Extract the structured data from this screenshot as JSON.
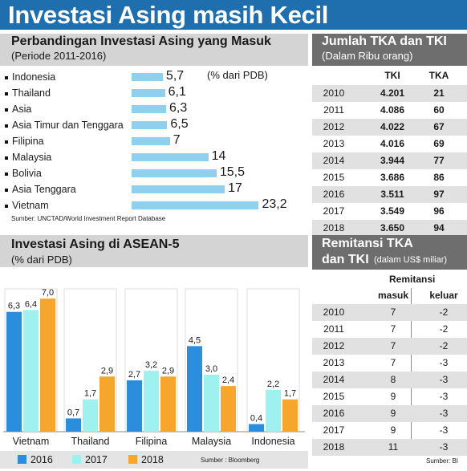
{
  "title": "Investasi Asing masih Kecil",
  "colors": {
    "title_bar": "#1f6fae",
    "bar_hbar": "#8fd0ef",
    "s2016": "#2b8ddb",
    "s2017": "#9ff1ef",
    "s2018": "#f6a62c",
    "dark_header": "#6e6e6e"
  },
  "chart_data": [
    {
      "type": "bar",
      "orientation": "horizontal",
      "title": "Perbandingan Investasi Asing yang Masuk",
      "subtitle": "(Periode 2011-2016)",
      "unit_note": "(% dari PDB)",
      "categories": [
        "Indonesia",
        "Thailand",
        "Asia",
        "Asia Timur dan Tenggara",
        "Filipina",
        "Malaysia",
        "Bolivia",
        "Asia Tenggara",
        "Vietnam"
      ],
      "values": [
        5.7,
        6.1,
        6.3,
        6.5,
        7,
        14,
        15.5,
        17,
        23.2
      ],
      "value_labels": [
        "5,7",
        "6,1",
        "6,3",
        "6,5",
        "7",
        "14",
        "15,5",
        "17",
        "23,2"
      ],
      "source": "Sumber: UNCTAD/World Investment Report Database"
    },
    {
      "type": "bar",
      "title": "Investasi Asing di ASEAN-5",
      "subtitle": "(% dari PDB)",
      "categories": [
        "Vietnam",
        "Thailand",
        "Filipina",
        "Malaysia",
        "Indonesia"
      ],
      "series": [
        {
          "name": "2016",
          "values": [
            6.3,
            0.7,
            2.7,
            4.5,
            0.4
          ],
          "labels": [
            "6,3",
            "0,7",
            "2,7",
            "4,5",
            "0,4"
          ]
        },
        {
          "name": "2017",
          "values": [
            6.4,
            1.7,
            3.2,
            3.0,
            2.2
          ],
          "labels": [
            "6,4",
            "1,7",
            "3,2",
            "3,0",
            "2,2"
          ]
        },
        {
          "name": "2018",
          "values": [
            7.0,
            2.9,
            2.9,
            2.4,
            1.7
          ],
          "labels": [
            "7,0",
            "2,9",
            "2,9",
            "2,4",
            "1,7"
          ]
        }
      ],
      "ylim": [
        0,
        7.6
      ],
      "legend_position": "bottom-left",
      "source": "Sumber : Bloomberg"
    },
    {
      "type": "table",
      "title": "Jumlah TKA dan TKI",
      "subtitle": "(Dalam Ribu orang)",
      "columns": [
        "TKI",
        "TKA"
      ],
      "rows": [
        {
          "year": "2010",
          "tki": "4.201",
          "tka": "21"
        },
        {
          "year": "2011",
          "tki": "4.086",
          "tka": "60"
        },
        {
          "year": "2012",
          "tki": "4.022",
          "tka": "67"
        },
        {
          "year": "2013",
          "tki": "4.016",
          "tka": "69"
        },
        {
          "year": "2014",
          "tki": "3.944",
          "tka": "77"
        },
        {
          "year": "2015",
          "tki": "3.686",
          "tka": "86"
        },
        {
          "year": "2016",
          "tki": "3.511",
          "tka": "97"
        },
        {
          "year": "2017",
          "tki": "3.549",
          "tka": "96"
        },
        {
          "year": "2018",
          "tki": "3.650",
          "tka": "94"
        }
      ]
    },
    {
      "type": "table",
      "title_line1": "Remitansi TKA",
      "title_line2": "dan TKI",
      "title_unit": "(dalam US$ miliar)",
      "group_header": "Remitansi",
      "columns": [
        "masuk",
        "keluar"
      ],
      "rows": [
        {
          "year": "2010",
          "masuk": "7",
          "keluar": "-2"
        },
        {
          "year": "2011",
          "masuk": "7",
          "keluar": "-2"
        },
        {
          "year": "2012",
          "masuk": "7",
          "keluar": "-2"
        },
        {
          "year": "2013",
          "masuk": "7",
          "keluar": "-3"
        },
        {
          "year": "2014",
          "masuk": "8",
          "keluar": "-3"
        },
        {
          "year": "2015",
          "masuk": "9",
          "keluar": "-3"
        },
        {
          "year": "2016",
          "masuk": "9",
          "keluar": "-3"
        },
        {
          "year": "2017",
          "masuk": "9",
          "keluar": "-3"
        },
        {
          "year": "2018",
          "masuk": "11",
          "keluar": "-3"
        }
      ],
      "source": "Sumber: BI"
    }
  ]
}
